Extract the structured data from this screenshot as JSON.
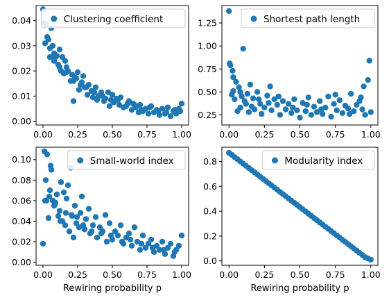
{
  "chart_data": [
    {
      "type": "scatter",
      "panel": "top-left",
      "series": [
        {
          "name": "Clustering coefficient",
          "color": "#1f77b4"
        }
      ],
      "legend": "top-right",
      "xlabel": "",
      "xlim": [
        -0.05,
        1.05
      ],
      "ylim": [
        -0.0015,
        0.046
      ],
      "xticks": [
        0.0,
        0.25,
        0.5,
        0.75,
        1.0
      ],
      "xtick_labels": [
        "0.00",
        "0.25",
        "0.50",
        "0.75",
        "1.00"
      ],
      "yticks": [
        0.0,
        0.01,
        0.02,
        0.03,
        0.04
      ],
      "ytick_labels": [
        "0.00",
        "0.01",
        "0.02",
        "0.03",
        "0.04"
      ],
      "x": [
        0.0,
        0.01,
        0.015,
        0.02,
        0.03,
        0.04,
        0.05,
        0.06,
        0.07,
        0.08,
        0.09,
        0.1,
        0.11,
        0.12,
        0.13,
        0.14,
        0.15,
        0.16,
        0.17,
        0.18,
        0.2,
        0.21,
        0.22,
        0.23,
        0.24,
        0.26,
        0.27,
        0.28,
        0.29,
        0.3,
        0.32,
        0.33,
        0.35,
        0.36,
        0.38,
        0.39,
        0.4,
        0.42,
        0.44,
        0.45,
        0.47,
        0.48,
        0.5,
        0.51,
        0.53,
        0.55,
        0.56,
        0.58,
        0.6,
        0.62,
        0.64,
        0.65,
        0.67,
        0.69,
        0.7,
        0.72,
        0.74,
        0.76,
        0.78,
        0.8,
        0.82,
        0.84,
        0.86,
        0.88,
        0.9,
        0.92,
        0.94,
        0.96,
        0.98,
        1.0,
        0.05,
        0.08,
        0.12,
        0.17,
        0.22,
        0.25,
        0.31,
        0.37,
        0.43,
        0.49,
        0.54,
        0.61,
        0.66,
        0.71,
        0.77,
        0.83,
        0.89,
        0.95,
        0.99
      ],
      "y": [
        0.0445,
        0.039,
        0.031,
        0.0385,
        0.0335,
        0.0325,
        0.029,
        0.037,
        0.03,
        0.027,
        0.0255,
        0.026,
        0.0225,
        0.0285,
        0.02,
        0.0255,
        0.019,
        0.024,
        0.0215,
        0.02,
        0.016,
        0.0185,
        0.008,
        0.0175,
        0.017,
        0.0125,
        0.0145,
        0.0155,
        0.018,
        0.0135,
        0.0105,
        0.0145,
        0.012,
        0.0095,
        0.0135,
        0.0085,
        0.01,
        0.0115,
        0.008,
        0.009,
        0.0115,
        0.006,
        0.0105,
        0.0075,
        0.009,
        0.0065,
        0.0095,
        0.0055,
        0.006,
        0.008,
        0.0045,
        0.007,
        0.0055,
        0.0035,
        0.0065,
        0.004,
        0.005,
        0.003,
        0.006,
        0.0035,
        0.0045,
        0.0025,
        0.005,
        0.003,
        0.0055,
        0.002,
        0.004,
        0.003,
        0.005,
        0.007,
        0.0255,
        0.024,
        0.0215,
        0.0195,
        0.016,
        0.0195,
        0.0135,
        0.0115,
        0.01,
        0.0085,
        0.0085,
        0.007,
        0.0065,
        0.0045,
        0.0055,
        0.004,
        0.0035,
        0.0045,
        0.004
      ]
    },
    {
      "type": "scatter",
      "panel": "top-right",
      "series": [
        {
          "name": "Shortest path length",
          "color": "#1f77b4"
        }
      ],
      "legend": "top-right",
      "xlabel": "",
      "xlim": [
        -0.05,
        1.05
      ],
      "ylim": [
        0.14,
        1.44
      ],
      "xticks": [
        0.0,
        0.25,
        0.5,
        0.75,
        1.0
      ],
      "xtick_labels": [
        "0.00",
        "0.25",
        "0.50",
        "0.75",
        "1.00"
      ],
      "yticks": [
        0.25,
        0.5,
        0.75,
        1.0,
        1.25
      ],
      "ytick_labels": [
        "0.25",
        "0.50",
        "0.75",
        "1.00",
        "1.25"
      ],
      "x": [
        0.0,
        0.005,
        0.01,
        0.02,
        0.025,
        0.03,
        0.04,
        0.05,
        0.06,
        0.07,
        0.08,
        0.09,
        0.1,
        0.11,
        0.12,
        0.13,
        0.14,
        0.15,
        0.17,
        0.18,
        0.2,
        0.22,
        0.23,
        0.25,
        0.27,
        0.29,
        0.3,
        0.32,
        0.34,
        0.36,
        0.38,
        0.4,
        0.42,
        0.44,
        0.46,
        0.48,
        0.5,
        0.52,
        0.54,
        0.56,
        0.58,
        0.6,
        0.62,
        0.64,
        0.66,
        0.68,
        0.7,
        0.72,
        0.74,
        0.76,
        0.78,
        0.8,
        0.82,
        0.84,
        0.86,
        0.88,
        0.9,
        0.92,
        0.94,
        0.95,
        0.96,
        0.98,
        0.99,
        1.0,
        0.03,
        0.08,
        0.16,
        0.21,
        0.28,
        0.35,
        0.45,
        0.55,
        0.65,
        0.75,
        0.85,
        0.93
      ],
      "y": [
        1.38,
        0.81,
        0.79,
        0.47,
        0.73,
        0.51,
        0.42,
        0.61,
        0.29,
        0.55,
        0.33,
        0.45,
        0.97,
        0.4,
        0.37,
        0.48,
        0.28,
        0.58,
        0.43,
        0.31,
        0.5,
        0.37,
        0.26,
        0.33,
        0.46,
        0.56,
        0.3,
        0.42,
        0.36,
        0.25,
        0.4,
        0.31,
        0.37,
        0.27,
        0.42,
        0.3,
        0.22,
        0.38,
        0.29,
        0.44,
        0.25,
        0.34,
        0.28,
        0.4,
        0.26,
        0.33,
        0.45,
        0.23,
        0.37,
        0.3,
        0.41,
        0.27,
        0.35,
        0.32,
        0.48,
        0.29,
        0.36,
        0.4,
        0.31,
        0.56,
        0.25,
        0.63,
        0.84,
        0.28,
        0.66,
        0.5,
        0.34,
        0.42,
        0.38,
        0.45,
        0.33,
        0.36,
        0.31,
        0.47,
        0.26,
        0.44
      ]
    },
    {
      "type": "scatter",
      "panel": "bottom-left",
      "series": [
        {
          "name": "Small-world index",
          "color": "#1f77b4"
        }
      ],
      "legend": "top-right",
      "xlabel": "Rewiring probability p",
      "xlim": [
        -0.05,
        1.05
      ],
      "ylim": [
        -0.003,
        0.112
      ],
      "xticks": [
        0.0,
        0.25,
        0.5,
        0.75,
        1.0
      ],
      "xtick_labels": [
        "0.00",
        "0.25",
        "0.50",
        "0.75",
        "1.00"
      ],
      "yticks": [
        0.0,
        0.02,
        0.04,
        0.06,
        0.08,
        0.1
      ],
      "ytick_labels": [
        "0.00",
        "0.02",
        "0.04",
        "0.06",
        "0.08",
        "0.10"
      ],
      "x": [
        0.0,
        0.01,
        0.02,
        0.025,
        0.03,
        0.04,
        0.05,
        0.055,
        0.06,
        0.07,
        0.08,
        0.09,
        0.1,
        0.11,
        0.12,
        0.13,
        0.14,
        0.15,
        0.16,
        0.17,
        0.18,
        0.19,
        0.2,
        0.21,
        0.22,
        0.23,
        0.24,
        0.26,
        0.27,
        0.28,
        0.3,
        0.31,
        0.33,
        0.34,
        0.36,
        0.38,
        0.39,
        0.41,
        0.43,
        0.45,
        0.46,
        0.48,
        0.5,
        0.52,
        0.54,
        0.56,
        0.58,
        0.6,
        0.62,
        0.64,
        0.66,
        0.68,
        0.7,
        0.72,
        0.74,
        0.76,
        0.78,
        0.8,
        0.82,
        0.84,
        0.86,
        0.88,
        0.9,
        0.92,
        0.94,
        0.96,
        0.98,
        1.0,
        0.015,
        0.045,
        0.085,
        0.125,
        0.165,
        0.205,
        0.245,
        0.29,
        0.35,
        0.42,
        0.49,
        0.57,
        0.63,
        0.71,
        0.79,
        0.87,
        0.95
      ],
      "y": [
        0.018,
        0.108,
        0.08,
        0.06,
        0.105,
        0.043,
        0.07,
        0.094,
        0.09,
        0.06,
        0.055,
        0.058,
        0.066,
        0.045,
        0.05,
        0.078,
        0.04,
        0.068,
        0.036,
        0.062,
        0.075,
        0.03,
        0.092,
        0.045,
        0.024,
        0.055,
        0.038,
        0.034,
        0.048,
        0.064,
        0.032,
        0.042,
        0.052,
        0.028,
        0.036,
        0.044,
        0.024,
        0.034,
        0.03,
        0.046,
        0.02,
        0.038,
        0.022,
        0.03,
        0.026,
        0.036,
        0.018,
        0.024,
        0.028,
        0.016,
        0.034,
        0.02,
        0.012,
        0.026,
        0.014,
        0.018,
        0.022,
        0.01,
        0.016,
        0.012,
        0.02,
        0.008,
        0.014,
        0.018,
        0.006,
        0.012,
        0.016,
        0.026,
        0.06,
        0.064,
        0.056,
        0.04,
        0.048,
        0.046,
        0.044,
        0.036,
        0.03,
        0.028,
        0.026,
        0.02,
        0.022,
        0.018,
        0.014,
        0.012,
        0.01
      ]
    },
    {
      "type": "scatter",
      "panel": "bottom-right",
      "series": [
        {
          "name": "Modularity index",
          "color": "#1f77b4"
        }
      ],
      "legend": "top-right",
      "xlabel": "Rewiring probability p",
      "xlim": [
        -0.05,
        1.05
      ],
      "ylim": [
        -0.035,
        0.915
      ],
      "xticks": [
        0.0,
        0.25,
        0.5,
        0.75,
        1.0
      ],
      "xtick_labels": [
        "0.00",
        "0.25",
        "0.50",
        "0.75",
        "1.00"
      ],
      "yticks": [
        0.0,
        0.2,
        0.4,
        0.6,
        0.8
      ],
      "ytick_labels": [
        "0.0",
        "0.2",
        "0.4",
        "0.6",
        "0.8"
      ],
      "x": [
        0.0,
        0.02,
        0.04,
        0.06,
        0.08,
        0.1,
        0.12,
        0.14,
        0.16,
        0.18,
        0.2,
        0.22,
        0.24,
        0.26,
        0.28,
        0.3,
        0.32,
        0.34,
        0.36,
        0.38,
        0.4,
        0.42,
        0.44,
        0.46,
        0.48,
        0.5,
        0.52,
        0.54,
        0.56,
        0.58,
        0.6,
        0.62,
        0.64,
        0.66,
        0.68,
        0.7,
        0.72,
        0.74,
        0.76,
        0.78,
        0.8,
        0.82,
        0.84,
        0.86,
        0.88,
        0.9,
        0.92,
        0.94,
        0.96,
        0.98,
        1.0
      ],
      "y": [
        0.87,
        0.853,
        0.835,
        0.818,
        0.8,
        0.783,
        0.765,
        0.748,
        0.73,
        0.713,
        0.695,
        0.678,
        0.66,
        0.643,
        0.625,
        0.608,
        0.59,
        0.573,
        0.555,
        0.538,
        0.52,
        0.503,
        0.485,
        0.468,
        0.45,
        0.433,
        0.415,
        0.398,
        0.38,
        0.363,
        0.345,
        0.328,
        0.31,
        0.293,
        0.275,
        0.258,
        0.24,
        0.223,
        0.205,
        0.188,
        0.17,
        0.153,
        0.135,
        0.118,
        0.1,
        0.083,
        0.065,
        0.048,
        0.03,
        0.02,
        0.01
      ]
    }
  ]
}
